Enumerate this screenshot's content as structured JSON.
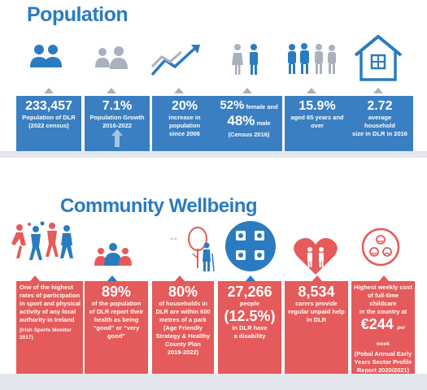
{
  "population": {
    "title": "Population",
    "stats": [
      {
        "value": "233,457",
        "line1": "Population of DLR",
        "line2": "(2022 census)"
      },
      {
        "value": "7.1%",
        "line1": "Population Growth",
        "line2": "2016-2022"
      },
      {
        "value": "20%",
        "line1": "increase in",
        "line2": "population",
        "line3": "since 2006"
      },
      {
        "pct1": "52%",
        "lbl1": "female and",
        "pct2": "48%",
        "lbl2": "male",
        "note": "(Census 2016)"
      },
      {
        "value": "15.9%",
        "line1": "aged 65 years and",
        "line2": "over"
      },
      {
        "value": "2.72",
        "line1": "average",
        "line2": "household",
        "line3": "size in DLR in 2016"
      }
    ]
  },
  "wellbeing": {
    "title": "Community Wellbeing",
    "stats": [
      {
        "line1": "One of the highest",
        "line2": "rates of participation",
        "line3": "in sport and physical",
        "line4": "activity of any local",
        "line5": "authority in Ireland",
        "source": "(Irish Sports Monitor 2017)"
      },
      {
        "value": "89%",
        "line1": "of the population",
        "line2": "of DLR report their",
        "line3": "health as being",
        "line4": "“good” or “very",
        "line5": "good”"
      },
      {
        "value": "80%",
        "line1": "of households in",
        "line2": "DLR are within 600",
        "line3": "metres of a park",
        "line4": "(Age Friendly",
        "line5": "Strategy & Healthy",
        "line6": "County Plan",
        "line7": "2019-2022)"
      },
      {
        "value": "27,266",
        "line1": "people",
        "value2": "(12.5%)",
        "line2": "in DLR have",
        "line3": "a disability"
      },
      {
        "value": "8,534",
        "line1": "carers provide",
        "line2": "regular unpaid help",
        "line3": "in DLR"
      },
      {
        "line1": "Highest weekly cost",
        "line2": "of full-time childcare",
        "line3": "in the country at",
        "value": "€244",
        "unit": "per week",
        "line4": "(Pobal Annual Early",
        "line5": "Years Sector Profile",
        "line6": "Report 2020/2021)"
      }
    ]
  },
  "colors": {
    "blue": "#2a7bc0",
    "card_blue": "#3a7fc1",
    "red": "#e55a5a",
    "gray": "#a9b1be",
    "light_gray": "#e3e7ed"
  },
  "icons": [
    "people-icon",
    "growth-people-icon",
    "trend-arrow-icon",
    "female-male-icon",
    "elderly-group-icon",
    "house-icon",
    "sports-icon",
    "health-people-icon",
    "park-elderly-icon",
    "disability-icon",
    "carer-heart-icon",
    "childcare-faces-icon"
  ]
}
